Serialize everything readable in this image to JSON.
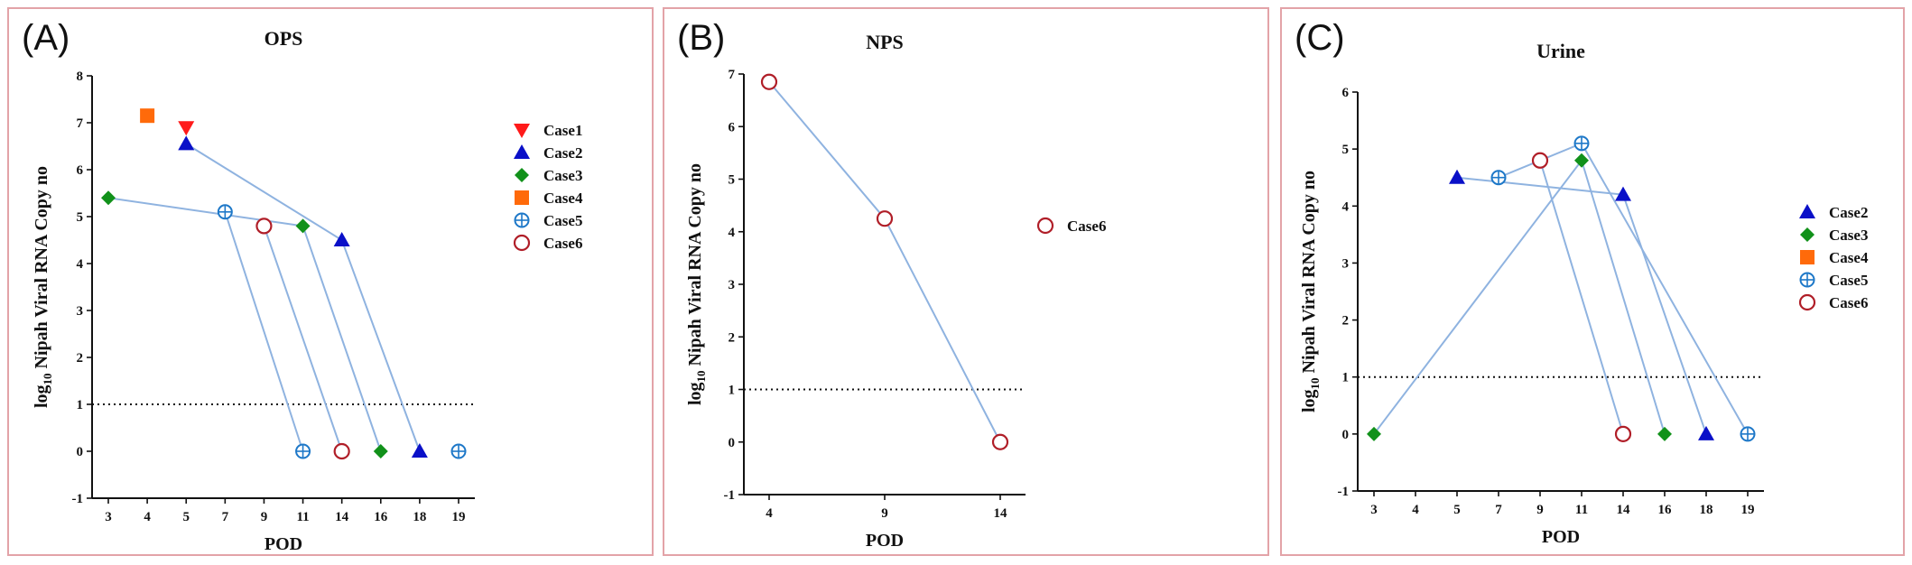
{
  "panels": [
    {
      "label": "(A)"
    },
    {
      "label": "(B)"
    },
    {
      "label": "(C)"
    }
  ],
  "styles": {
    "line_color": "#8fb3e0",
    "cases": {
      "Case1": {
        "marker": "triangle-down",
        "color": "#ff1a1a"
      },
      "Case2": {
        "marker": "triangle-up",
        "color": "#0a10c8"
      },
      "Case3": {
        "marker": "diamond",
        "color": "#11911a"
      },
      "Case4": {
        "marker": "square",
        "color": "#ff6a0a"
      },
      "Case5": {
        "marker": "circle-plus",
        "color": "#1e78c8"
      },
      "Case6": {
        "marker": "circle-open",
        "color": "#b01e28"
      }
    }
  },
  "chart_data": [
    {
      "type": "scatter",
      "title": "OPS",
      "xlabel": "POD",
      "ylabel": "log10 Nipah Viral RNA Copy no",
      "x_categories": [
        "3",
        "4",
        "5",
        "7",
        "9",
        "11",
        "14",
        "16",
        "18",
        "19"
      ],
      "ylim": [
        -1,
        8
      ],
      "yticks": [
        -1,
        0,
        1,
        2,
        3,
        4,
        5,
        6,
        7,
        8
      ],
      "threshold": 1,
      "legend_position": "right",
      "legend": [
        "Case1",
        "Case2",
        "Case3",
        "Case4",
        "Case5",
        "Case6"
      ],
      "series": [
        {
          "name": "Case1",
          "points": [
            {
              "x": "5",
              "y": 6.9
            }
          ]
        },
        {
          "name": "Case2",
          "points": [
            {
              "x": "5",
              "y": 6.55
            },
            {
              "x": "14",
              "y": 4.5
            },
            {
              "x": "18",
              "y": 0
            }
          ]
        },
        {
          "name": "Case3",
          "points": [
            {
              "x": "3",
              "y": 5.4
            },
            {
              "x": "11",
              "y": 4.8
            },
            {
              "x": "16",
              "y": 0
            }
          ]
        },
        {
          "name": "Case4",
          "points": [
            {
              "x": "4",
              "y": 7.15
            }
          ]
        },
        {
          "name": "Case5",
          "points": [
            {
              "x": "7",
              "y": 5.1
            },
            {
              "x": "11",
              "y": 0
            },
            {
              "x": "19",
              "y": 0
            }
          ]
        },
        {
          "name": "Case6",
          "points": [
            {
              "x": "9",
              "y": 4.8
            },
            {
              "x": "14",
              "y": 0
            }
          ]
        }
      ],
      "connections": [
        {
          "series": "Case2",
          "order": [
            0,
            1,
            2
          ]
        },
        {
          "series": "Case3",
          "order": [
            0,
            1,
            2
          ]
        },
        {
          "series": "Case5",
          "order": [
            0,
            1
          ]
        },
        {
          "series": "Case6",
          "order": [
            0,
            1
          ]
        }
      ]
    },
    {
      "type": "line",
      "title": "NPS",
      "xlabel": "POD",
      "ylabel": "log10 Nipah Viral RNA Copy no",
      "x_categories": [
        "4",
        "9",
        "14"
      ],
      "ylim": [
        -1,
        7
      ],
      "yticks": [
        -1,
        0,
        1,
        2,
        3,
        4,
        5,
        6,
        7
      ],
      "threshold": 1,
      "legend_position": "right",
      "legend": [
        "Case6"
      ],
      "series": [
        {
          "name": "Case6",
          "points": [
            {
              "x": "4",
              "y": 6.85
            },
            {
              "x": "9",
              "y": 4.25
            },
            {
              "x": "14",
              "y": 0
            }
          ]
        }
      ],
      "connections": [
        {
          "series": "Case6",
          "order": [
            0,
            1,
            2
          ]
        }
      ]
    },
    {
      "type": "scatter",
      "title": "Urine",
      "xlabel": "POD",
      "ylabel": "log10 Nipah Viral RNA Copy no",
      "x_categories": [
        "3",
        "4",
        "5",
        "7",
        "9",
        "11",
        "14",
        "16",
        "18",
        "19"
      ],
      "ylim": [
        -1,
        6
      ],
      "yticks": [
        -1,
        0,
        1,
        2,
        3,
        4,
        5,
        6
      ],
      "threshold": 1,
      "legend_position": "right",
      "legend": [
        "Case2",
        "Case3",
        "Case4",
        "Case5",
        "Case6"
      ],
      "series": [
        {
          "name": "Case2",
          "points": [
            {
              "x": "5",
              "y": 4.5
            },
            {
              "x": "14",
              "y": 4.2
            },
            {
              "x": "18",
              "y": 0
            }
          ]
        },
        {
          "name": "Case3",
          "points": [
            {
              "x": "3",
              "y": 0
            },
            {
              "x": "11",
              "y": 4.8
            },
            {
              "x": "16",
              "y": 0
            }
          ]
        },
        {
          "name": "Case5",
          "points": [
            {
              "x": "7",
              "y": 4.5
            },
            {
              "x": "11",
              "y": 5.1
            },
            {
              "x": "19",
              "y": 0
            }
          ]
        },
        {
          "name": "Case6",
          "points": [
            {
              "x": "9",
              "y": 4.8
            },
            {
              "x": "14",
              "y": 0
            }
          ]
        }
      ],
      "connections": [
        {
          "series": "Case2",
          "order": [
            0,
            1,
            2
          ]
        },
        {
          "series": "Case3",
          "order": [
            0,
            1,
            2
          ]
        },
        {
          "series": "Case5",
          "order": [
            0,
            1,
            2
          ]
        },
        {
          "series": "Case6",
          "order": [
            0,
            1
          ]
        }
      ]
    }
  ]
}
